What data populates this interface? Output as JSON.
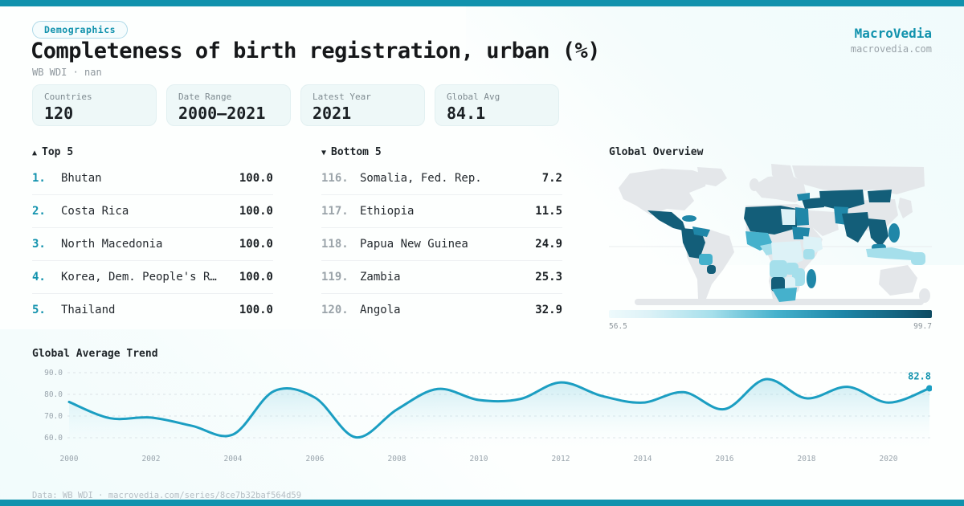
{
  "theme": {
    "accent": "#1192ad",
    "line": "#1b9ec2",
    "grid": "#dbe2e6",
    "map_palette": [
      "#ddf2f7",
      "#a5dfeb",
      "#45b1cc",
      "#1f87a8",
      "#135e79"
    ]
  },
  "header": {
    "badge": "Demographics",
    "title": "Completeness of birth registration, urban (%)",
    "subtitle": "WB WDI · nan",
    "brand": "MacroVedia",
    "brand_domain": "macrovedia.com"
  },
  "stats": [
    {
      "label": "Countries",
      "value": "120"
    },
    {
      "label": "Date Range",
      "value": "2000–2021"
    },
    {
      "label": "Latest Year",
      "value": "2021"
    },
    {
      "label": "Global Avg",
      "value": "84.1"
    }
  ],
  "top5": {
    "icon": "▲",
    "title": "Top 5",
    "items": [
      {
        "rank": "1.",
        "name": "Bhutan",
        "value": "100.0"
      },
      {
        "rank": "2.",
        "name": "Costa Rica",
        "value": "100.0"
      },
      {
        "rank": "3.",
        "name": "North Macedonia",
        "value": "100.0"
      },
      {
        "rank": "4.",
        "name": "Korea, Dem. People's R…",
        "value": "100.0"
      },
      {
        "rank": "5.",
        "name": "Thailand",
        "value": "100.0"
      }
    ]
  },
  "bottom5": {
    "icon": "▼",
    "title": "Bottom 5",
    "items": [
      {
        "rank": "116.",
        "name": "Somalia, Fed. Rep.",
        "value": "7.2"
      },
      {
        "rank": "117.",
        "name": "Ethiopia",
        "value": "11.5"
      },
      {
        "rank": "118.",
        "name": "Papua New Guinea",
        "value": "24.9"
      },
      {
        "rank": "119.",
        "name": "Zambia",
        "value": "25.3"
      },
      {
        "rank": "120.",
        "name": "Angola",
        "value": "32.9"
      }
    ]
  },
  "map": {
    "title": "Global Overview",
    "scale_min": "56.5",
    "scale_max": "99.7"
  },
  "chart_data": {
    "type": "line",
    "title": "Global Average Trend",
    "x": [
      2000,
      2001,
      2002,
      2003,
      2004,
      2005,
      2006,
      2007,
      2008,
      2009,
      2010,
      2011,
      2012,
      2013,
      2014,
      2015,
      2016,
      2017,
      2018,
      2019,
      2020,
      2021
    ],
    "values": [
      76.5,
      69.0,
      69.3,
      65.5,
      61.5,
      81.5,
      78.5,
      60.2,
      73.0,
      82.5,
      77.4,
      77.8,
      85.5,
      79.3,
      76.2,
      81.0,
      73.2,
      87.0,
      78.2,
      83.5,
      76.2,
      82.8
    ],
    "yticks": [
      90.0,
      80.0,
      70.0,
      60.0
    ],
    "ytick_labels": [
      "90.0",
      "80.0",
      "70.0",
      "60.0"
    ],
    "xticks": [
      2000,
      2002,
      2004,
      2006,
      2008,
      2010,
      2012,
      2014,
      2016,
      2018,
      2020
    ],
    "ylim": [
      55,
      95
    ],
    "grid": true,
    "legend": false,
    "end_label": "82.8"
  },
  "footer": {
    "text": "Data: WB WDI · macrovedia.com/series/8ce7b32baf564d59"
  }
}
